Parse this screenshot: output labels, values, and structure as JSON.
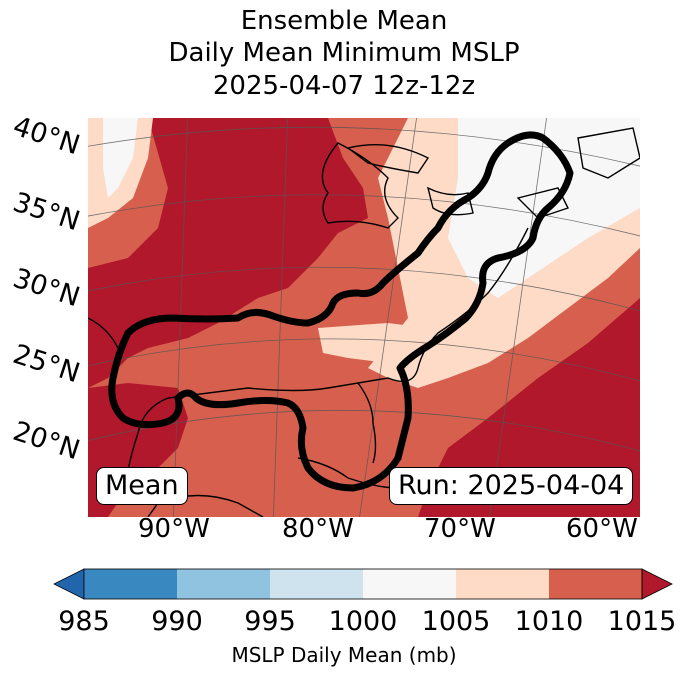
{
  "title_lines": [
    "Ensemble Mean",
    "Daily Mean Minimum MSLP",
    "2025-04-07 12z-12z"
  ],
  "lat_labels": [
    "40°N",
    "35°N",
    "30°N",
    "25°N",
    "20°N"
  ],
  "lon_labels": [
    "90°W",
    "80°W",
    "70°W",
    "60°W"
  ],
  "badge_left": "Mean",
  "badge_right": "Run: 2025-04-04",
  "colorbar": {
    "ticks": [
      "985",
      "990",
      "995",
      "1000",
      "1005",
      "1010",
      "1015"
    ],
    "label": "MSLP Daily Mean (mb)",
    "colors": [
      "#3a88c0",
      "#90c3df",
      "#cfe3ef",
      "#f7f7f7",
      "#fddbc7",
      "#d6604d",
      "#b2182b"
    ],
    "extend_low_color": "#2166ac",
    "extend_high_color": "#b2182b"
  },
  "map_colors": {
    "c1005": "#fddbc7",
    "c1010": "#d6604d",
    "c1015": "#b2182b",
    "c1000": "#f7f7f7"
  }
}
